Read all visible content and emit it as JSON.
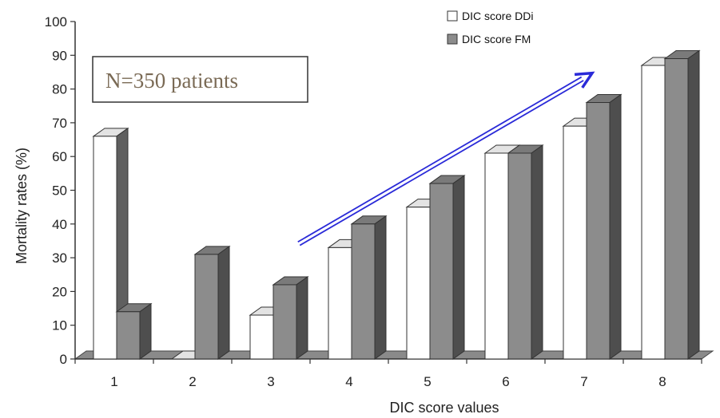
{
  "chart_data": {
    "type": "bar",
    "title": "",
    "xlabel": "DIC score values",
    "ylabel": "Mortality rates (%)",
    "categories": [
      "1",
      "2",
      "3",
      "4",
      "5",
      "6",
      "7",
      "8"
    ],
    "ylim": [
      0,
      100
    ],
    "yticks": [
      "0",
      "10",
      "20",
      "30",
      "40",
      "50",
      "60",
      "70",
      "80",
      "90",
      "100"
    ],
    "series": [
      {
        "name": "DIC score DDi",
        "values": [
          66,
          0,
          13,
          33,
          45,
          61,
          69,
          87
        ],
        "color": "#ffffff"
      },
      {
        "name": "DIC score FM",
        "values": [
          14,
          31,
          22,
          40,
          52,
          61,
          76,
          89
        ],
        "color": "#8c8c8c"
      }
    ],
    "legend_position": "top-right",
    "grid": false,
    "annotation": {
      "text": "N=350 patients",
      "arrow_from": {
        "category": "3",
        "value": 33
      },
      "arrow_to": {
        "category": "7",
        "value": 84
      },
      "arrow_color": "#2a2ad8"
    }
  }
}
